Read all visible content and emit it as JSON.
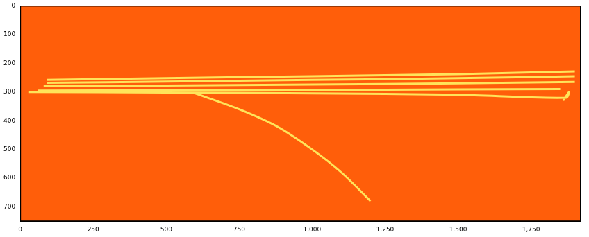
{
  "chart_data": {
    "type": "image",
    "xlim": [
      0,
      1920
    ],
    "xticks": [
      0,
      250,
      500,
      750,
      1000,
      1250,
      1500,
      1750
    ],
    "ylim": [
      750,
      0
    ],
    "yticks": [
      0,
      100,
      200,
      300,
      400,
      500,
      600,
      700
    ],
    "grid": false,
    "series": [
      {
        "color": "#ffe45a",
        "x": [
          90,
          500,
          1000,
          1500,
          1900
        ],
        "values": [
          258,
          252,
          245,
          238,
          228
        ]
      },
      {
        "color": "#ffe45a",
        "x": [
          90,
          500,
          1000,
          1500,
          1900
        ],
        "values": [
          268,
          264,
          258,
          252,
          245
        ]
      },
      {
        "color": "#ffe45a",
        "x": [
          80,
          500,
          1000,
          1500,
          1900
        ],
        "values": [
          280,
          278,
          274,
          270,
          265
        ]
      },
      {
        "color": "#ffe45a",
        "x": [
          60,
          500,
          1000,
          1500,
          1850
        ],
        "values": [
          295,
          294,
          293,
          291,
          290
        ]
      },
      {
        "color": "#ffe45a",
        "x": [
          30,
          500,
          1000,
          1500,
          1870,
          1880,
          1860
        ],
        "values": [
          300,
          302,
          305,
          310,
          320,
          300,
          330
        ]
      },
      {
        "color": "#ffe45a",
        "x": [
          600,
          750,
          880,
          1000,
          1100,
          1200
        ],
        "values": [
          305,
          360,
          420,
          500,
          580,
          680
        ]
      }
    ]
  }
}
